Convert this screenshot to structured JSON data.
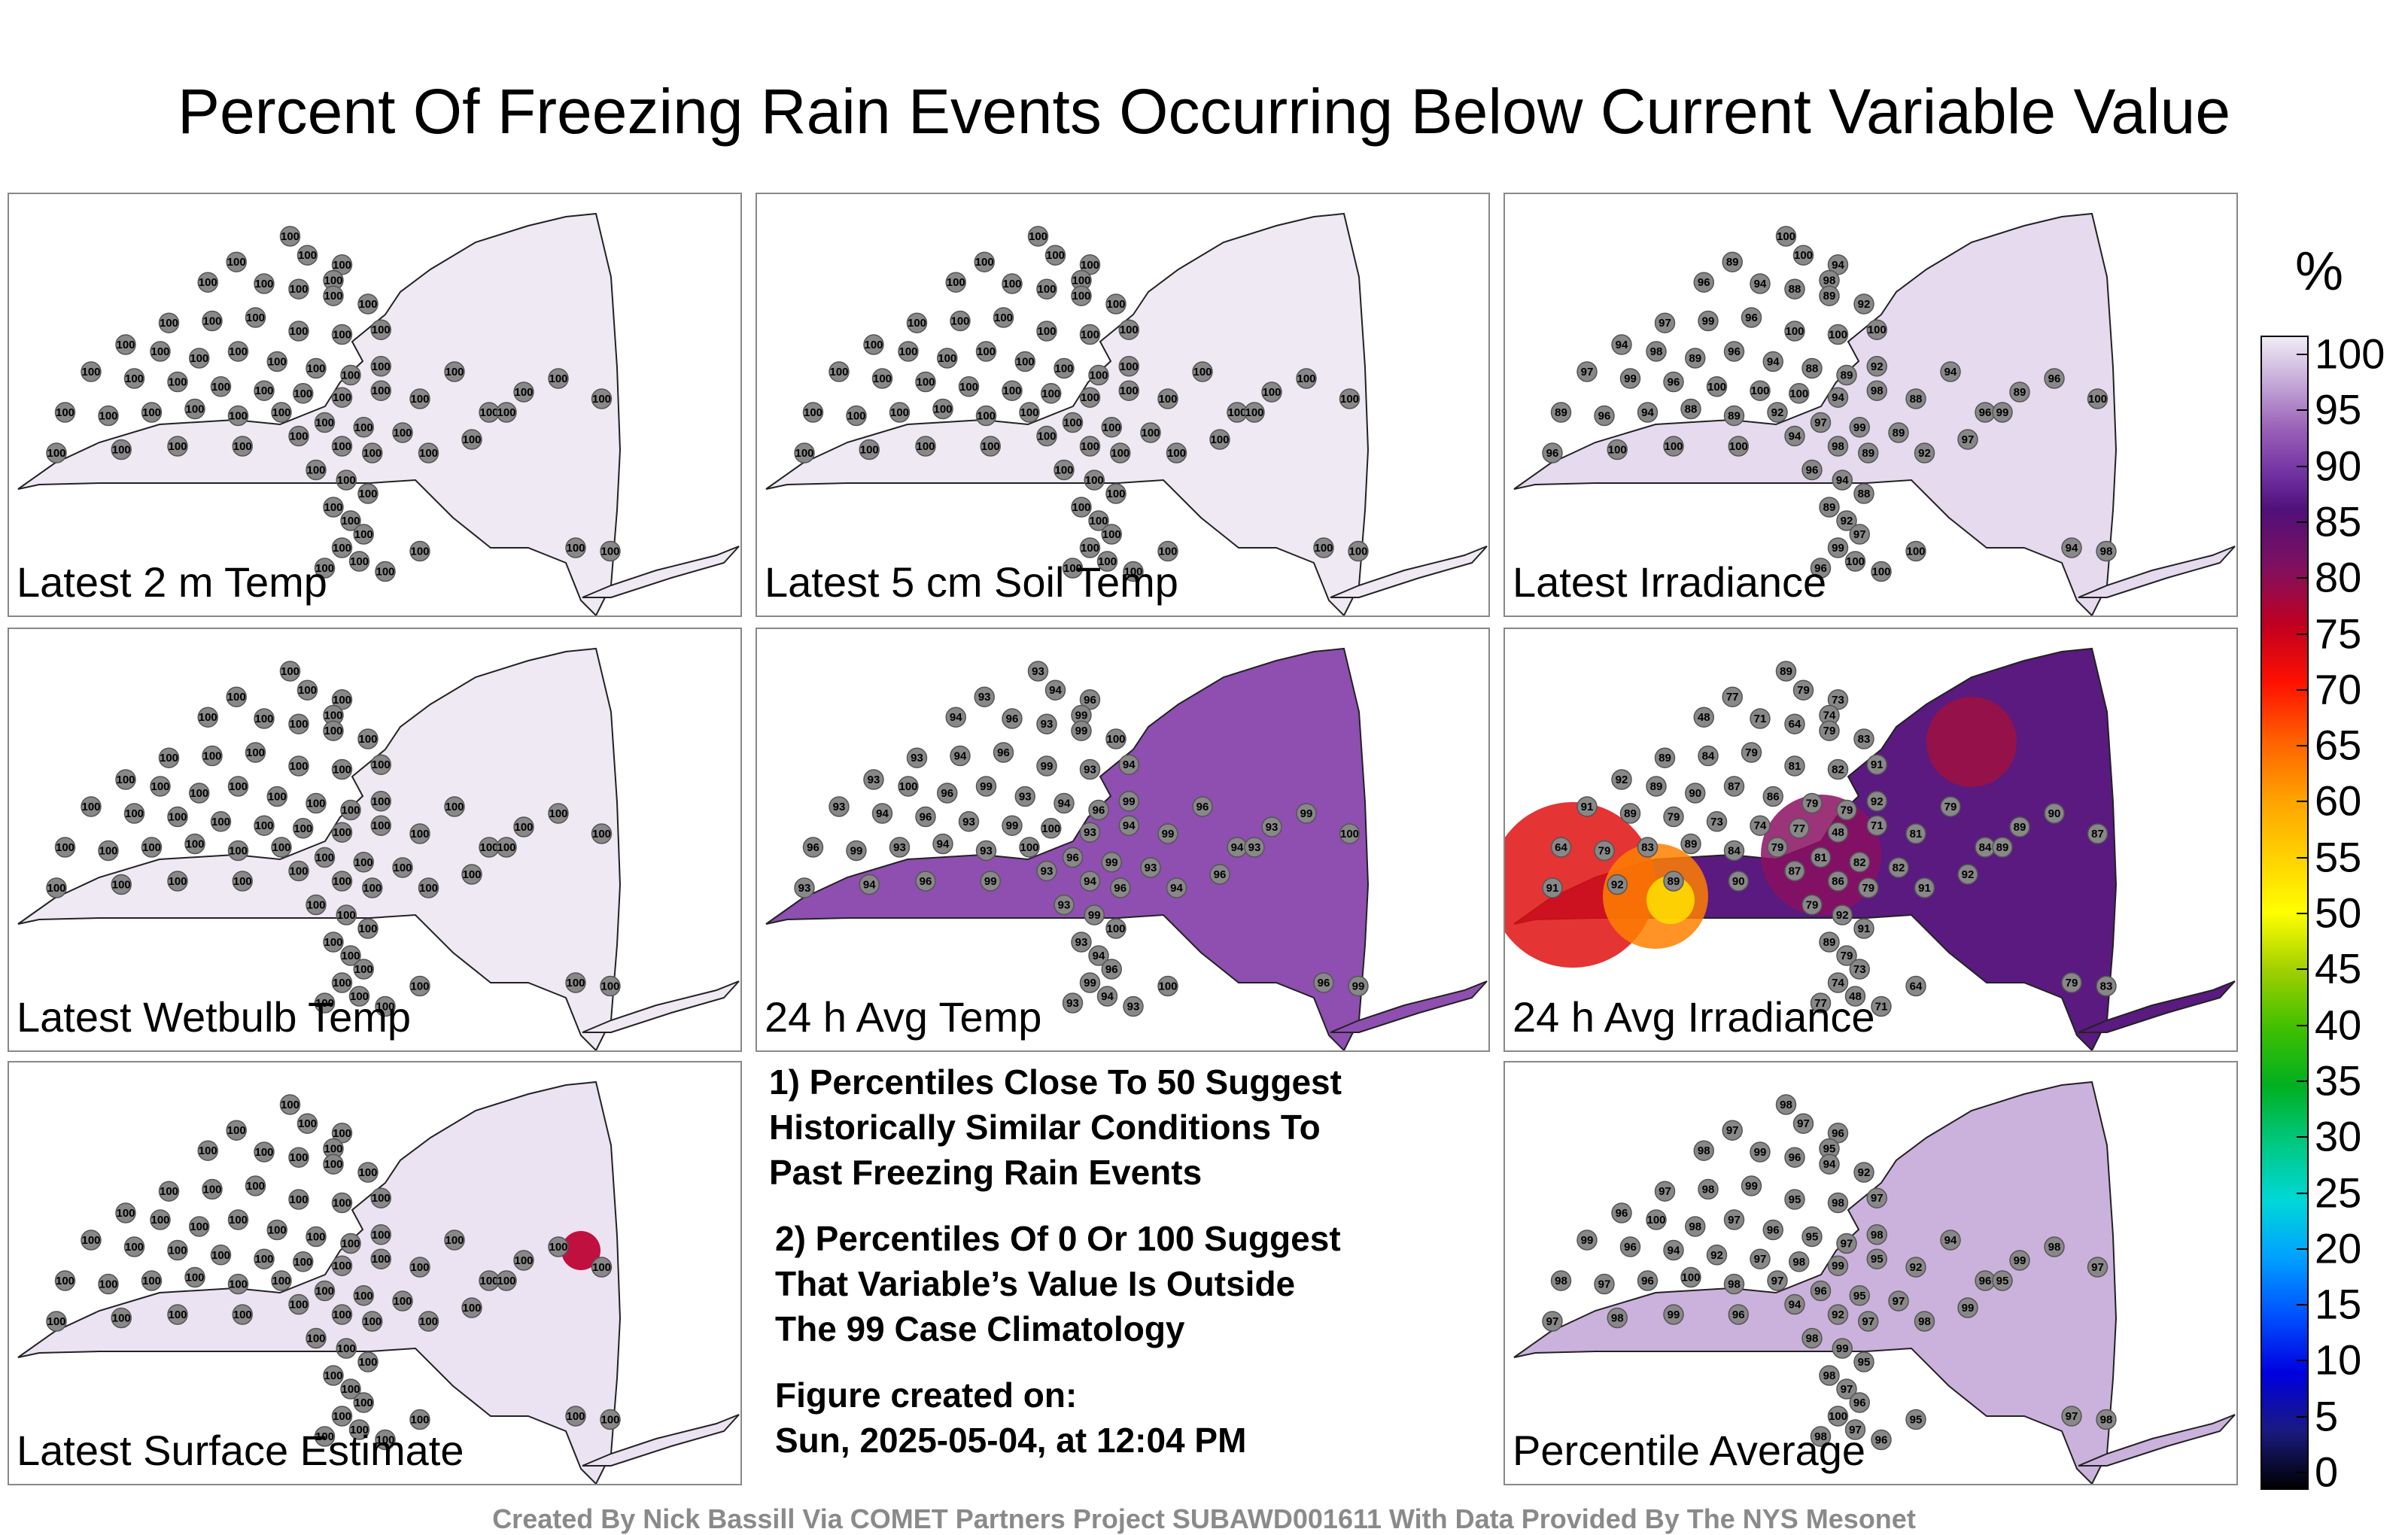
{
  "title": "Percent Of Freezing Rain Events Occurring Below Current Variable Value",
  "panels": [
    {
      "label": "Latest 2 m Temp",
      "field": "uniform",
      "fill": "#efe9f4"
    },
    {
      "label": "Latest 5 cm Soil Temp",
      "field": "uniform",
      "fill": "#efe9f4"
    },
    {
      "label": "Latest Irradiance",
      "field": "mixed_light",
      "fill": "#e6daef"
    },
    {
      "label": "Latest Wetbulb Temp",
      "field": "uniform",
      "fill": "#efe9f4"
    },
    {
      "label": "24 h Avg Temp",
      "field": "mixed_purple",
      "fill": "#8e4fb0"
    },
    {
      "label": "24 h Avg Irradiance",
      "field": "hot",
      "fill": "#5a1a80"
    },
    {
      "label": "Latest Surface Estimate",
      "field": "uniform_hot_east",
      "fill": "#ebe2f2"
    },
    {
      "label": "Percentile Average",
      "field": "mixed_light2",
      "fill": "#cbb2dc"
    }
  ],
  "notes": {
    "p1": [
      "1) Percentiles Close To 50 Suggest",
      "Historically Similar Conditions To",
      "Past Freezing Rain Events"
    ],
    "p2": [
      "2) Percentiles Of 0 Or 100 Suggest",
      "That Variable’s Value Is Outside",
      "The 99 Case Climatology"
    ],
    "created_label": "Figure created on:",
    "created_date": "Sun, 2025-05-04, at 12:04 PM"
  },
  "colorbar": {
    "unit": "%",
    "ticks": [
      "100",
      "95",
      "90",
      "85",
      "80",
      "75",
      "70",
      "65",
      "60",
      "55",
      "50",
      "45",
      "40",
      "35",
      "30",
      "25",
      "20",
      "15",
      "10",
      "5",
      "0"
    ]
  },
  "footer": "Created By Nick Bassill Via COMET Partners Project SUBAWD001611 With Data Provided By The NYS Mesonet",
  "station_values": {
    "uniform": [
      "100"
    ],
    "mixed_light": [
      "100",
      "100",
      "94",
      "98",
      "89",
      "96",
      "94",
      "88",
      "89",
      "92",
      "97",
      "99",
      "96",
      "100"
    ],
    "mixed_purple": [
      "93",
      "94",
      "96",
      "99",
      "93",
      "94",
      "96",
      "93",
      "99",
      "100",
      "93",
      "94",
      "96",
      "99",
      "93",
      "94",
      "93",
      "100",
      "96",
      "99"
    ],
    "hot": [
      "89",
      "79",
      "73",
      "74",
      "77",
      "48",
      "71",
      "64",
      "79",
      "83",
      "89",
      "84",
      "79",
      "81",
      "82",
      "91",
      "92",
      "89",
      "90",
      "87",
      "86",
      "79",
      "79",
      "92",
      "91"
    ],
    "mixed_light2": [
      "98",
      "97",
      "96",
      "95",
      "97",
      "98",
      "99",
      "96",
      "94",
      "92",
      "97",
      "98",
      "99",
      "95",
      "98",
      "97",
      "96",
      "100"
    ]
  }
}
